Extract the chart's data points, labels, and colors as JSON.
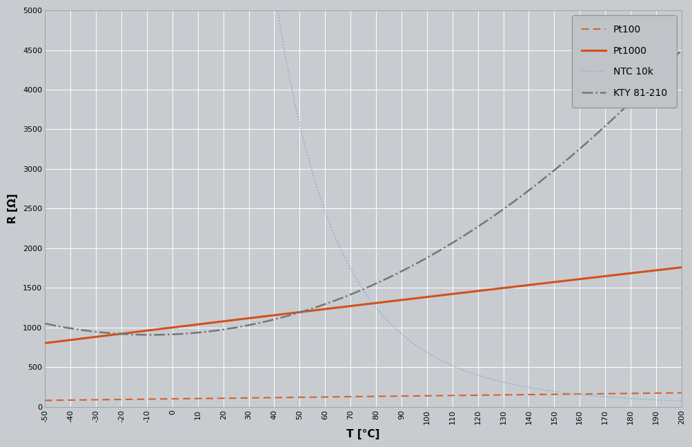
{
  "title": "",
  "xlabel": "T [°C]",
  "ylabel": "R [Ω]",
  "xlim": [
    -50,
    200
  ],
  "ylim": [
    0,
    5000
  ],
  "xticks": [
    -50,
    -40,
    -30,
    -20,
    -10,
    0,
    10,
    20,
    30,
    40,
    50,
    60,
    70,
    80,
    90,
    100,
    110,
    120,
    130,
    140,
    150,
    160,
    170,
    180,
    190,
    200
  ],
  "yticks": [
    0,
    500,
    1000,
    1500,
    2000,
    2500,
    3000,
    3500,
    4000,
    4500,
    5000
  ],
  "bg_color": "#c8ccd0",
  "plot_bg_color": "#c8ccd0",
  "grid_color": "#ffffff",
  "pt100_color": "#d4622a",
  "pt1000_color": "#d4501a",
  "ntc_color": "#7ab0c8",
  "kty_color": "#707878",
  "legend_bg": "#c0c4c8",
  "legend_edge": "#909898",
  "font_family": "DejaVu Sans"
}
